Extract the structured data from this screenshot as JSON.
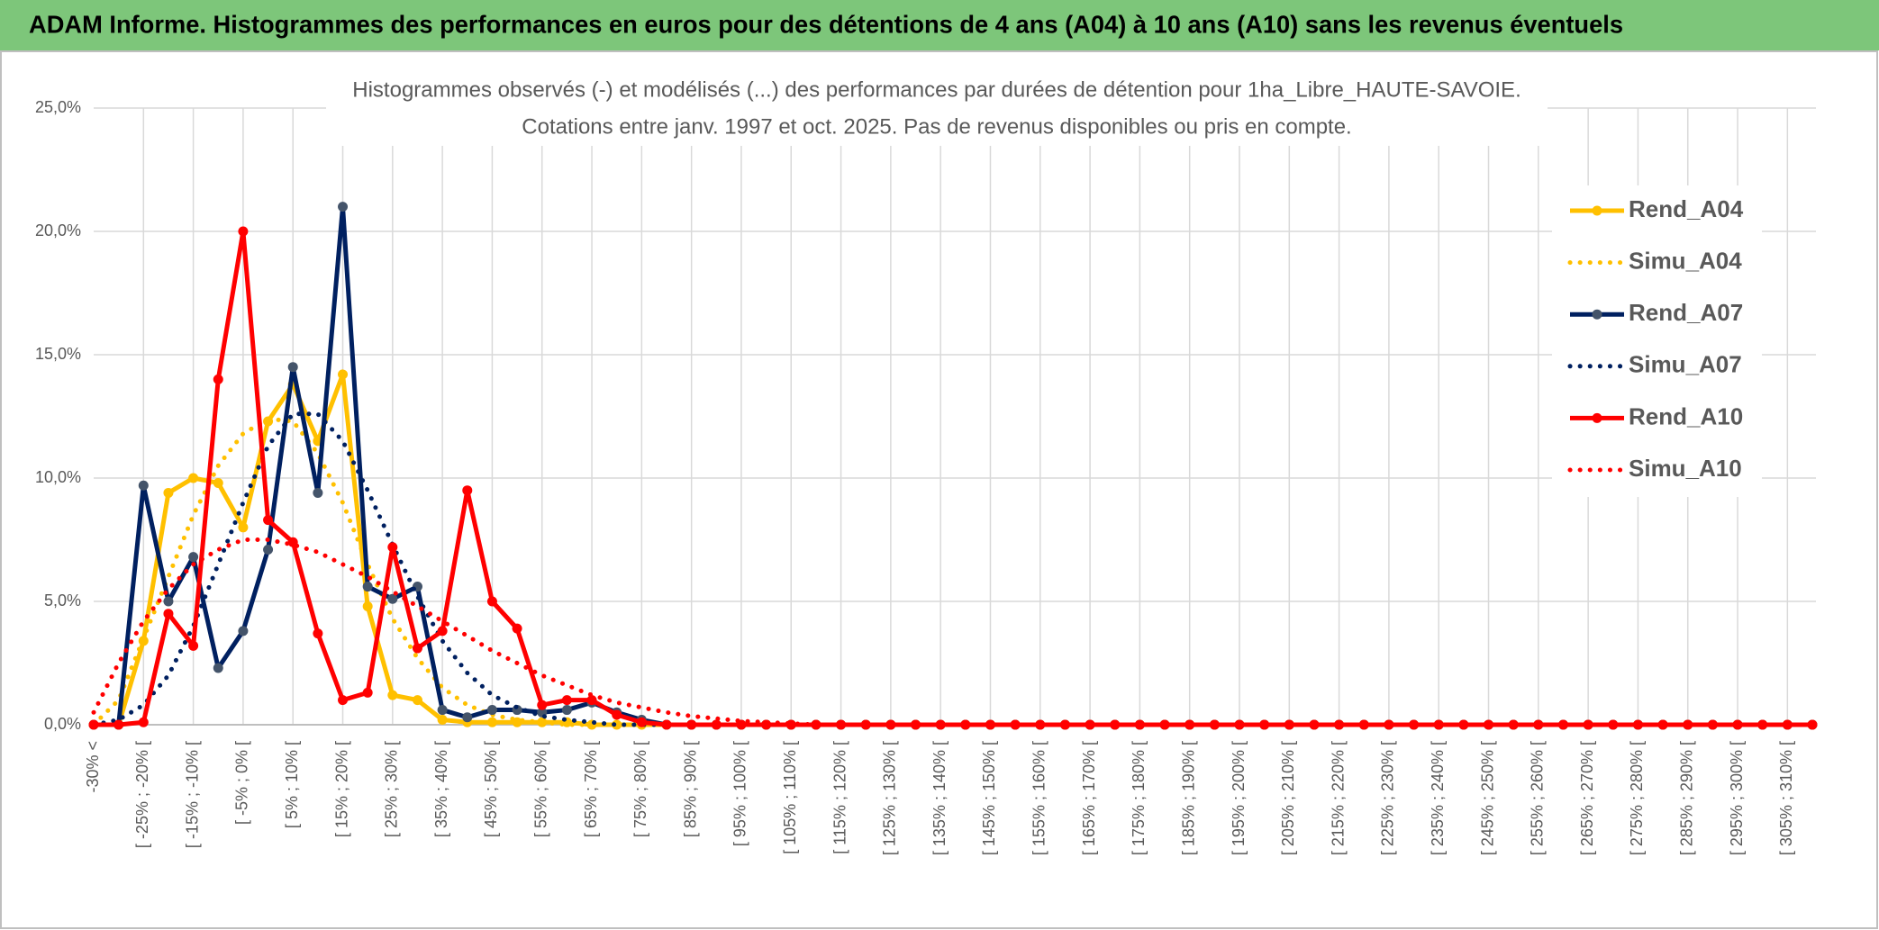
{
  "header": {
    "title": "ADAM Informe. Histogrammes des performances en euros pour des détentions de 4 ans (A04) à 10 ans (A10) sans les revenus éventuels"
  },
  "chart_data": {
    "type": "line",
    "title": "Histogrammes observés (-) et modélisés (...) des performances par durées de détention pour 1ha_Libre_HAUTE-SAVOIE.",
    "subtitle": "Cotations entre janv. 1997 et oct. 2025. Pas de revenus disponibles ou pris en compte.",
    "categories": [
      "-30% <",
      null,
      "[ -25% ; -20% [",
      null,
      "[ -15% ; -10% [",
      null,
      "[ -5% ; 0% [",
      null,
      "[ 5% ; 10% [",
      null,
      "[ 15% ; 20% [",
      null,
      "[ 25% ; 30% [",
      null,
      "[ 35% ; 40% [",
      null,
      "[ 45% ; 50% [",
      null,
      "[ 55% ; 60% [",
      null,
      "[ 65% ; 70% [",
      null,
      "[ 75% ; 80% [",
      null,
      "[ 85% ; 90% [",
      null,
      "[ 95% ; 100% [",
      null,
      "[ 105% ; 110% [",
      null,
      "[ 115% ; 120% [",
      null,
      "[ 125% ; 130% [",
      null,
      "[ 135% ; 140% [",
      null,
      "[ 145% ; 150% [",
      null,
      "[ 155% ; 160% [",
      null,
      "[ 165% ; 170% [",
      null,
      "[ 175% ; 180% [",
      null,
      "[ 185% ; 190% [",
      null,
      "[ 195% ; 200% [",
      null,
      "[ 205% ; 210% [",
      null,
      "[ 215% ; 220% [",
      null,
      "[ 225% ; 230% [",
      null,
      "[ 235% ; 240% [",
      null,
      "[ 245% ; 250% [",
      null,
      "[ 255% ; 260% [",
      null,
      "[ 265% ; 270% [",
      null,
      "[ 275% ; 280% [",
      null,
      "[ 285% ; 290% [",
      null,
      "[ 295% ; 300% [",
      null,
      "[ 305% ; 310% [",
      null
    ],
    "series": [
      {
        "name": "Rend_A04",
        "color": "#ffc000",
        "marker_color": "#ffc000",
        "dash": "solid",
        "marker": true,
        "values": [
          0,
          0,
          3.4,
          9.4,
          10,
          9.8,
          8,
          12.3,
          13.8,
          11.5,
          14.2,
          4.8,
          1.2,
          1,
          0.2,
          0.1,
          0.1,
          0.1,
          0.1,
          0.1,
          0,
          0,
          0,
          0,
          0,
          0,
          0,
          0,
          0,
          0,
          0,
          0,
          0,
          0,
          0,
          0,
          0,
          0,
          0,
          0,
          0,
          0,
          0,
          0,
          0,
          0,
          0,
          0,
          0,
          0,
          0,
          0,
          0,
          0,
          0,
          0,
          0,
          0,
          0,
          0,
          0,
          0,
          0,
          0,
          0,
          0,
          0,
          0,
          0,
          0
        ]
      },
      {
        "name": "Simu_A04",
        "color": "#ffc000",
        "dash": "dotted",
        "marker": false,
        "values": [
          0,
          1,
          3.5,
          6,
          8.5,
          10.5,
          11.8,
          12.4,
          12.3,
          11,
          9,
          6.5,
          4.3,
          2.7,
          1.5,
          0.8,
          0.4,
          0.2,
          0.1,
          0,
          0,
          0,
          0,
          0,
          0,
          0,
          0,
          0,
          0,
          0,
          0,
          0,
          0,
          0,
          0,
          0,
          0,
          0,
          0,
          0,
          0,
          0,
          0,
          0,
          0,
          0,
          0,
          0,
          0,
          0,
          0,
          0,
          0,
          0,
          0,
          0,
          0,
          0,
          0,
          0,
          0,
          0,
          0,
          0,
          0,
          0,
          0,
          0,
          0,
          0
        ]
      },
      {
        "name": "Rend_A07",
        "color": "#002060",
        "marker_color": "#44546a",
        "dash": "solid",
        "marker": true,
        "values": [
          0,
          0,
          9.7,
          5,
          6.8,
          2.3,
          3.8,
          7.1,
          14.5,
          9.4,
          21,
          5.6,
          5.1,
          5.6,
          0.6,
          0.3,
          0.6,
          0.6,
          0.5,
          0.6,
          0.9,
          0.5,
          0.2,
          0,
          0,
          0,
          0,
          0,
          0,
          0,
          0,
          0,
          0,
          0,
          0,
          0,
          0,
          0,
          0,
          0,
          0,
          0,
          0,
          0,
          0,
          0,
          0,
          0,
          0,
          0,
          0,
          0,
          0,
          0,
          0,
          0,
          0,
          0,
          0,
          0,
          0,
          0,
          0,
          0,
          0,
          0,
          0,
          0,
          0,
          0
        ]
      },
      {
        "name": "Simu_A07",
        "color": "#002060",
        "dash": "dotted",
        "marker": false,
        "values": [
          0,
          0.2,
          0.8,
          2,
          4,
          6.5,
          9,
          11.3,
          12.6,
          12.6,
          11.5,
          9.5,
          7.3,
          5.2,
          3.4,
          2.1,
          1.2,
          0.7,
          0.35,
          0.2,
          0.1,
          0,
          0,
          0,
          0,
          0,
          0,
          0,
          0,
          0,
          0,
          0,
          0,
          0,
          0,
          0,
          0,
          0,
          0,
          0,
          0,
          0,
          0,
          0,
          0,
          0,
          0,
          0,
          0,
          0,
          0,
          0,
          0,
          0,
          0,
          0,
          0,
          0,
          0,
          0,
          0,
          0,
          0,
          0,
          0,
          0,
          0,
          0,
          0,
          0
        ]
      },
      {
        "name": "Rend_A10",
        "color": "#ff0000",
        "marker_color": "#ff0000",
        "dash": "solid",
        "marker": true,
        "values": [
          0,
          0,
          0.1,
          4.5,
          3.2,
          14,
          20,
          8.3,
          7.4,
          3.7,
          1,
          1.3,
          7.2,
          3.1,
          3.8,
          9.5,
          5,
          3.9,
          0.8,
          1,
          1,
          0.4,
          0.1,
          0,
          0,
          0,
          0,
          0,
          0,
          0,
          0,
          0,
          0,
          0,
          0,
          0,
          0,
          0,
          0,
          0,
          0,
          0,
          0,
          0,
          0,
          0,
          0,
          0,
          0,
          0,
          0,
          0,
          0,
          0,
          0,
          0,
          0,
          0,
          0,
          0,
          0,
          0,
          0,
          0,
          0,
          0,
          0,
          0,
          0,
          0
        ]
      },
      {
        "name": "Simu_A10",
        "color": "#ff0000",
        "dash": "dotted",
        "marker": false,
        "values": [
          0.5,
          2.5,
          4.2,
          5.5,
          6.5,
          7.1,
          7.5,
          7.5,
          7.3,
          7,
          6.5,
          6,
          5.4,
          4.8,
          4.2,
          3.6,
          3,
          2.5,
          2,
          1.6,
          1.2,
          0.9,
          0.7,
          0.5,
          0.35,
          0.25,
          0.15,
          0.1,
          0.05,
          0,
          0,
          0,
          0,
          0,
          0,
          0,
          0,
          0,
          0,
          0,
          0,
          0,
          0,
          0,
          0,
          0,
          0,
          0,
          0,
          0,
          0,
          0,
          0,
          0,
          0,
          0,
          0,
          0,
          0,
          0,
          0,
          0,
          0,
          0,
          0,
          0,
          0,
          0,
          0,
          0
        ]
      }
    ],
    "ylim": [
      0,
      25
    ],
    "yticks": [
      {
        "value": 0,
        "label": "0,0%"
      },
      {
        "value": 5,
        "label": "5,0%"
      },
      {
        "value": 10,
        "label": "10,0%"
      },
      {
        "value": 15,
        "label": "15,0%"
      },
      {
        "value": 20,
        "label": "20,0%"
      },
      {
        "value": 25,
        "label": "25,0%"
      }
    ],
    "grid": true,
    "legend": "right"
  }
}
